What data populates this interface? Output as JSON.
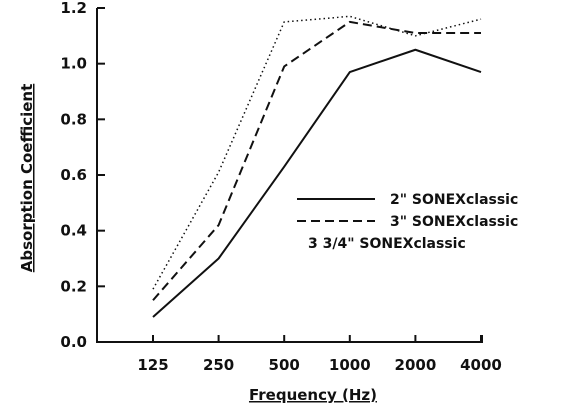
{
  "chart_data": {
    "type": "line",
    "title": "",
    "xlabel": "Frequency (Hz)",
    "ylabel": "Absorption Coefficient",
    "categories": [
      "125",
      "250",
      "500",
      "1000",
      "2000",
      "4000"
    ],
    "yticks": [
      "0.0",
      "0.2",
      "0.4",
      "0.6",
      "0.8",
      "1.0",
      "1.2"
    ],
    "ylim": [
      0,
      1.2
    ],
    "grid": false,
    "legend_position": "right",
    "series": [
      {
        "name": "2\" SONEXclassic",
        "style": "solid",
        "color": "#111111",
        "values": [
          0.09,
          0.3,
          0.63,
          0.97,
          1.05,
          0.97
        ]
      },
      {
        "name": "3\" SONEXclassic",
        "style": "dashed",
        "color": "#111111",
        "values": [
          0.15,
          0.42,
          0.99,
          1.15,
          1.11,
          1.11
        ]
      },
      {
        "name": "3 3/4\" SONEXclassic",
        "style": "dotted",
        "color": "#111111",
        "values": [
          0.19,
          0.61,
          1.15,
          1.17,
          1.1,
          1.16
        ]
      }
    ]
  }
}
